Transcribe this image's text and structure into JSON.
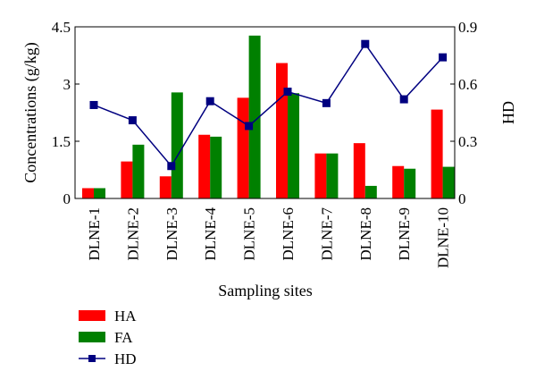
{
  "chart_data": {
    "type": "bar",
    "categories": [
      "DLNE-1",
      "DLNE-2",
      "DLNE-3",
      "DLNE-4",
      "DLNE-5",
      "DLNE-6",
      "DLNE-7",
      "DLNE-8",
      "DLNE-9",
      "DLNE-10"
    ],
    "xlabel": "Sampling sites",
    "ylabel": "Concentrations (g/kg)",
    "y2label": "HD",
    "ylim": [
      0,
      4.5
    ],
    "y2lim": [
      0,
      0.9
    ],
    "yticks": [
      0,
      1.5,
      3,
      4.5
    ],
    "y2ticks": [
      0,
      0.3,
      0.6,
      0.9
    ],
    "grid": false,
    "legend_position": "bottom-left",
    "series": [
      {
        "name": "HA",
        "type": "bar",
        "axis": "left",
        "color": "#ff0000",
        "values": [
          0.27,
          0.97,
          0.58,
          1.67,
          2.64,
          3.55,
          1.18,
          1.45,
          0.85,
          2.33
        ]
      },
      {
        "name": "FA",
        "type": "bar",
        "axis": "left",
        "color": "#008000",
        "values": [
          0.27,
          1.41,
          2.78,
          1.62,
          4.27,
          2.76,
          1.18,
          0.33,
          0.78,
          0.83
        ]
      },
      {
        "name": "HD",
        "type": "line",
        "axis": "right",
        "marker": "square",
        "color": "#000080",
        "values": [
          0.49,
          0.41,
          0.17,
          0.51,
          0.38,
          0.56,
          0.5,
          0.81,
          0.52,
          0.74
        ]
      }
    ]
  }
}
